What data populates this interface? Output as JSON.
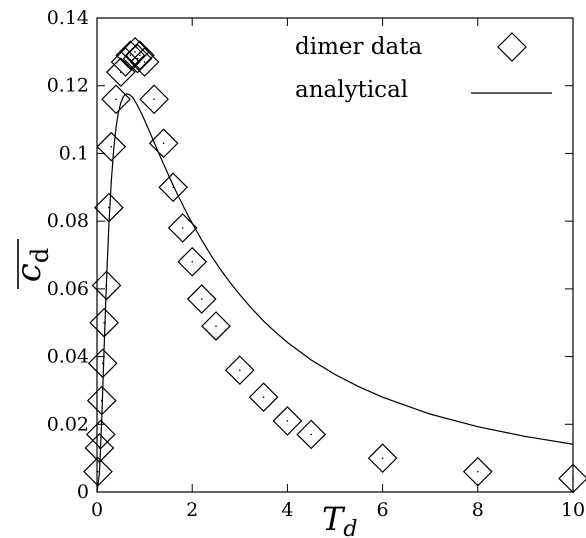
{
  "chart_data": {
    "type": "scatter",
    "xlabel": "T_d",
    "ylabel": "c_d",
    "xlim": [
      0,
      10
    ],
    "ylim": [
      0,
      0.14
    ],
    "x_ticks": [
      "0",
      "2",
      "4",
      "6",
      "8",
      "10"
    ],
    "y_ticks": [
      "0",
      "0.02",
      "0.04",
      "0.06",
      "0.08",
      "0.1",
      "0.12",
      "0.14"
    ],
    "legend_position": "top-right",
    "grid": false,
    "series": [
      {
        "name": "dimer data",
        "marker": "diamond",
        "color": "#000000",
        "x": [
          0.02,
          0.05,
          0.08,
          0.1,
          0.12,
          0.15,
          0.2,
          0.25,
          0.3,
          0.4,
          0.5,
          0.6,
          0.7,
          0.8,
          0.85,
          0.9,
          1.0,
          1.2,
          1.4,
          1.6,
          1.8,
          2.0,
          2.2,
          2.5,
          3.0,
          3.5,
          4.0,
          4.5,
          6.0,
          8.0,
          10.0
        ],
        "y": [
          0.006,
          0.013,
          0.017,
          0.027,
          0.038,
          0.05,
          0.061,
          0.084,
          0.102,
          0.116,
          0.124,
          0.127,
          0.129,
          0.13,
          0.128,
          0.129,
          0.127,
          0.116,
          0.103,
          0.09,
          0.078,
          0.068,
          0.057,
          0.049,
          0.036,
          0.028,
          0.021,
          0.017,
          0.01,
          0.006,
          0.004
        ]
      },
      {
        "name": "analytical",
        "style": "line",
        "color": "#000000",
        "x": [
          0.0,
          0.05,
          0.1,
          0.15,
          0.2,
          0.25,
          0.3,
          0.35,
          0.4,
          0.45,
          0.5,
          0.55,
          0.6,
          0.65,
          0.7,
          0.75,
          0.8,
          0.85,
          0.9,
          0.95,
          1.0,
          1.1,
          1.2,
          1.3,
          1.4,
          1.5,
          1.6,
          1.7,
          1.8,
          1.9,
          2.0,
          2.2,
          2.4,
          2.6,
          2.8,
          3.0,
          3.25,
          3.5,
          3.75,
          4.0,
          4.5,
          5.0,
          5.5,
          6.0,
          7.0,
          8.0,
          9.0,
          10.0
        ],
        "y": [
          0.0,
          0.0052,
          0.0216,
          0.0427,
          0.0625,
          0.079,
          0.0917,
          0.1011,
          0.1077,
          0.1121,
          0.115,
          0.1167,
          0.1175,
          0.1176,
          0.1172,
          0.1165,
          0.1154,
          0.1142,
          0.1128,
          0.1114,
          0.1098,
          0.1066,
          0.1033,
          0.1,
          0.0968,
          0.0937,
          0.0906,
          0.0876,
          0.0848,
          0.082,
          0.0794,
          0.0744,
          0.0698,
          0.0656,
          0.0618,
          0.0583,
          0.0542,
          0.0505,
          0.0472,
          0.0442,
          0.039,
          0.0347,
          0.0311,
          0.028,
          0.023,
          0.0193,
          0.0164,
          0.0141
        ]
      }
    ]
  }
}
